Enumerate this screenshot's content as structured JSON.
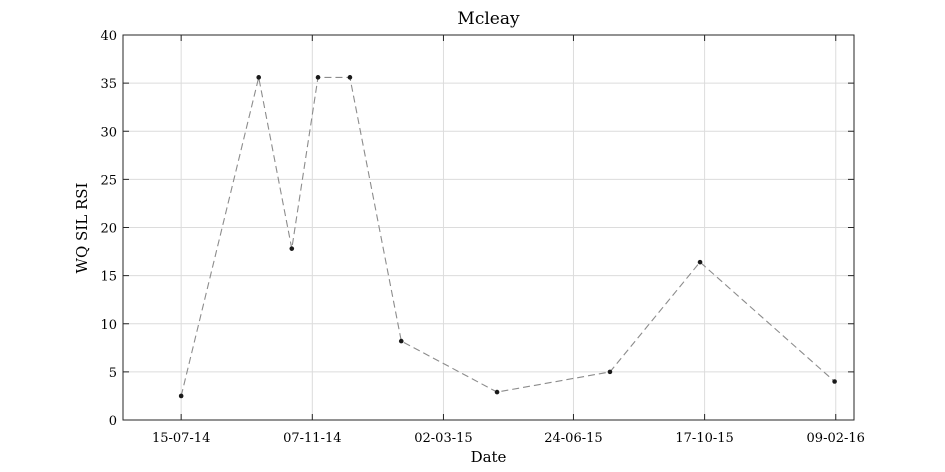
{
  "chart_data": {
    "type": "line",
    "title": "Mcleay",
    "xlabel": "Date",
    "ylabel": "WQ SIL RSI",
    "x_axis_type": "date",
    "xlim": [
      "2014-05-25",
      "2016-02-25"
    ],
    "ylim": [
      0,
      40
    ],
    "grid": true,
    "legend": "none",
    "x_ticks": [
      "2014-07-15",
      "2014-11-07",
      "2015-03-02",
      "2015-06-24",
      "2015-10-17",
      "2016-02-09"
    ],
    "x_tick_labels": [
      "15-07-14",
      "07-11-14",
      "02-03-15",
      "24-06-15",
      "17-10-15",
      "09-02-16"
    ],
    "y_ticks": [
      0,
      5,
      10,
      15,
      20,
      25,
      30,
      35,
      40
    ],
    "y_tick_labels": [
      "0",
      "5",
      "10",
      "15",
      "20",
      "25",
      "30",
      "35",
      "40"
    ],
    "colors": {
      "line": "#8c8c8c",
      "marker": "#1a1a1a",
      "grid": "#dcdcdc",
      "frame": "#262626"
    },
    "series": [
      {
        "points": [
          {
            "x": "2014-07-15",
            "y": 2.5
          },
          {
            "x": "2014-09-21",
            "y": 35.6
          },
          {
            "x": "2014-10-20",
            "y": 17.8
          },
          {
            "x": "2014-11-12",
            "y": 35.6
          },
          {
            "x": "2014-12-10",
            "y": 35.6
          },
          {
            "x": "2015-01-24",
            "y": 8.2
          },
          {
            "x": "2015-04-18",
            "y": 2.9
          },
          {
            "x": "2015-07-26",
            "y": 5.0
          },
          {
            "x": "2015-10-13",
            "y": 16.4
          },
          {
            "x": "2016-02-08",
            "y": 4.0
          }
        ]
      }
    ]
  }
}
